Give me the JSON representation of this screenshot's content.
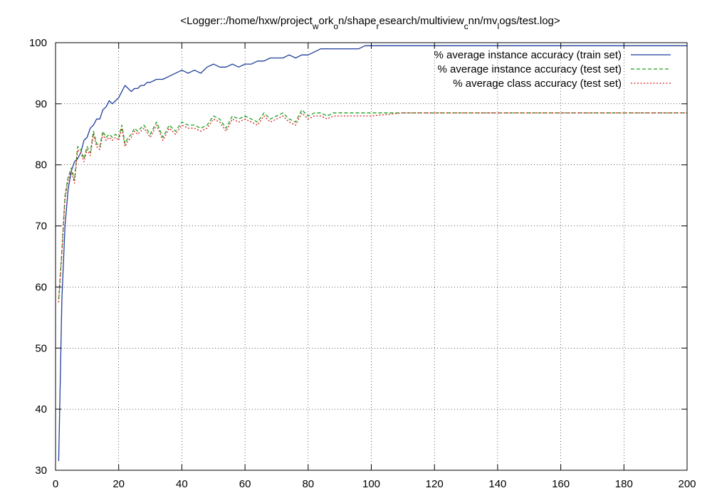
{
  "chart_data": {
    "type": "line",
    "title_parts": [
      "<Logger::/home/hxw/project",
      "w",
      "ork",
      "o",
      "n/shape",
      "r",
      "esearch/multiview",
      "c",
      "nn/mv",
      "l",
      "ogs/test.log>"
    ],
    "xlabel": "",
    "ylabel": "",
    "xlim": [
      0,
      200
    ],
    "ylim": [
      30,
      100
    ],
    "xticks": [
      0,
      20,
      40,
      60,
      80,
      100,
      120,
      140,
      160,
      180,
      200
    ],
    "yticks": [
      30,
      40,
      50,
      60,
      70,
      80,
      90,
      100
    ],
    "grid": true,
    "legend_position": "top-right",
    "series": [
      {
        "name": "% average instance accuracy (train set)",
        "color": "#1f3f9a",
        "style": "solid",
        "x": [
          1,
          2,
          3,
          4,
          5,
          6,
          7,
          8,
          9,
          10,
          11,
          12,
          13,
          14,
          15,
          16,
          17,
          18,
          19,
          20,
          21,
          22,
          23,
          24,
          25,
          26,
          27,
          28,
          29,
          30,
          32,
          34,
          36,
          38,
          40,
          42,
          44,
          46,
          48,
          50,
          52,
          54,
          56,
          58,
          60,
          62,
          64,
          66,
          68,
          70,
          72,
          74,
          76,
          78,
          80,
          82,
          84,
          86,
          88,
          90,
          92,
          94,
          96,
          98,
          100,
          110,
          120,
          130,
          140,
          150,
          160,
          170,
          180,
          190,
          200
        ],
        "y": [
          31.5,
          58,
          70,
          76,
          79,
          80.5,
          81,
          82,
          84,
          84.5,
          86,
          86.5,
          87.5,
          87.5,
          89,
          89.5,
          90.5,
          90,
          90.5,
          91,
          92,
          93,
          92.5,
          92,
          92.5,
          92.5,
          93,
          93,
          93.5,
          93.5,
          94,
          94,
          94.5,
          95,
          95.5,
          95,
          95.5,
          95,
          96,
          96.5,
          96,
          96,
          96.5,
          96,
          96.5,
          96.5,
          97,
          97,
          97.5,
          97.5,
          97.5,
          98,
          97.5,
          98,
          98,
          98.5,
          99,
          99,
          99,
          99,
          99,
          99,
          99,
          99.5,
          99.5,
          99.5,
          99.5,
          99.5,
          99.5,
          99.5,
          99.5,
          99.5,
          99.5,
          99.5,
          99.5
        ]
      },
      {
        "name": "% average instance accuracy (test set)",
        "color": "#1fa01f",
        "style": "dashed",
        "x": [
          1,
          2,
          3,
          4,
          5,
          6,
          7,
          8,
          9,
          10,
          11,
          12,
          13,
          14,
          15,
          16,
          17,
          18,
          19,
          20,
          21,
          22,
          23,
          24,
          25,
          26,
          28,
          30,
          32,
          34,
          36,
          38,
          40,
          42,
          44,
          46,
          48,
          50,
          52,
          54,
          56,
          58,
          60,
          62,
          64,
          66,
          68,
          70,
          72,
          74,
          76,
          78,
          80,
          82,
          84,
          86,
          88,
          90,
          92,
          94,
          96,
          98,
          100,
          110,
          120,
          130,
          140,
          150,
          160,
          170,
          180,
          190,
          200
        ],
        "y": [
          58,
          66,
          75,
          78,
          79.5,
          77.5,
          83,
          82.5,
          81,
          83,
          82,
          85.5,
          83.5,
          83,
          85.5,
          84.5,
          85,
          84.5,
          85,
          84.5,
          86.5,
          83.5,
          84.5,
          85,
          86,
          85.5,
          86.5,
          85,
          87,
          84.5,
          86.5,
          85.5,
          87,
          86.5,
          86.5,
          86,
          86.5,
          88,
          87.5,
          86,
          88,
          87.5,
          88,
          87.5,
          87,
          88.5,
          87.5,
          88,
          88.5,
          87.5,
          87,
          89,
          88,
          88.5,
          88.5,
          88,
          88.5,
          88.5,
          88.5,
          88.5,
          88.5,
          88.5,
          88.5,
          88.5,
          88.5,
          88.5,
          88.5,
          88.5,
          88.5,
          88.5,
          88.5,
          88.5,
          88.5
        ]
      },
      {
        "name": "% average class accuracy (test set)",
        "color": "#d42020",
        "style": "dotted",
        "x": [
          1,
          2,
          3,
          4,
          5,
          6,
          7,
          8,
          9,
          10,
          11,
          12,
          13,
          14,
          15,
          16,
          17,
          18,
          19,
          20,
          21,
          22,
          23,
          24,
          25,
          26,
          28,
          30,
          32,
          34,
          36,
          38,
          40,
          42,
          44,
          46,
          48,
          50,
          52,
          54,
          56,
          58,
          60,
          62,
          64,
          66,
          68,
          70,
          72,
          74,
          76,
          78,
          80,
          82,
          84,
          86,
          88,
          90,
          92,
          94,
          96,
          98,
          100,
          110,
          120,
          130,
          140,
          150,
          160,
          170,
          180,
          190,
          200
        ],
        "y": [
          57.5,
          65.5,
          74.5,
          77.5,
          79,
          77,
          82.5,
          82,
          80.5,
          82.5,
          81.5,
          85,
          83,
          82.5,
          85,
          84,
          84.5,
          84,
          84.5,
          84,
          86,
          83,
          84,
          84.5,
          85.5,
          85,
          86,
          84.5,
          86.5,
          84,
          86,
          85,
          86.5,
          86,
          86,
          85.5,
          86,
          87.5,
          87,
          85.5,
          87.5,
          87,
          87.5,
          87,
          86.5,
          88,
          87,
          87.5,
          88,
          87,
          86.5,
          88.5,
          87.5,
          88,
          88,
          87.5,
          88,
          88,
          88,
          88,
          88,
          88,
          88,
          88.5,
          88.5,
          88.5,
          88.5,
          88.5,
          88.5,
          88.5,
          88.5,
          88.5,
          88.5
        ]
      }
    ]
  }
}
